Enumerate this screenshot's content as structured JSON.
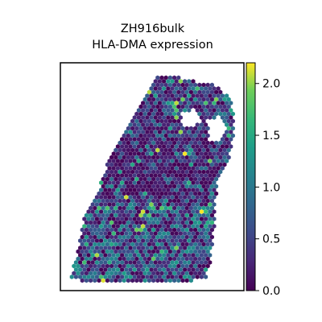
{
  "chart_data": {
    "type": "scatter",
    "title": [
      "ZH916bulk",
      "HLA-DMA expression"
    ],
    "xlabel": "",
    "ylabel": "",
    "colorbar": {
      "colormap": "viridis",
      "range": [
        0.0,
        2.2
      ],
      "ticks": [
        0.0,
        0.5,
        1.0,
        1.5,
        2.0
      ],
      "tick_labels": [
        "0.0",
        "0.5",
        "1.0",
        "1.5",
        "2.0"
      ],
      "position": "right"
    },
    "spots": {
      "marker": "hexagon",
      "description": "spatial transcriptomics spots colored by HLA-DMA expression; most spots low (0-0.8), scattered high spots up to ~2.2"
    },
    "axes_ticks": "none",
    "grid": false
  }
}
